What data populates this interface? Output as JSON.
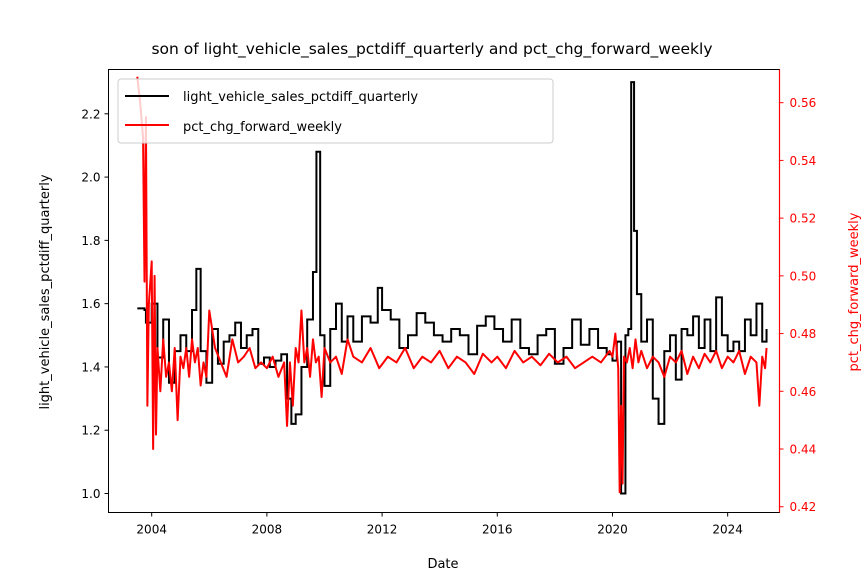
{
  "chart_data": {
    "type": "line",
    "title": "son of light_vehicle_sales_pctdiff_quarterly and pct_chg_forward_weekly",
    "xlabel": "Date",
    "ylabel": "light_vehicle_sales_pctdiff_quarterly",
    "y2label": "pct_chg_forward_weekly",
    "xlim": [
      2002.5,
      2025.8
    ],
    "ylim": [
      0.94,
      2.34
    ],
    "y2lim": [
      0.418,
      0.5715
    ],
    "xticks": [
      "2004",
      "2008",
      "2012",
      "2016",
      "2020",
      "2024"
    ],
    "yticks": [
      "1.0",
      "1.2",
      "1.4",
      "1.6",
      "1.8",
      "2.0",
      "2.2"
    ],
    "y2ticks": [
      "0.42",
      "0.44",
      "0.46",
      "0.48",
      "0.50",
      "0.52",
      "0.54",
      "0.56"
    ],
    "legend": {
      "placement": "top-left",
      "entries": [
        "light_vehicle_sales_pctdiff_quarterly",
        "pct_chg_forward_weekly"
      ]
    },
    "colors": {
      "series1": "#000000",
      "series2": "#ff0000"
    },
    "series": [
      {
        "name": "light_vehicle_sales_pctdiff_quarterly",
        "axis": "left",
        "x": [
          2003.5,
          2003.75,
          2003.8,
          2004.0,
          2004.2,
          2004.4,
          2004.6,
          2004.8,
          2005.0,
          2005.2,
          2005.4,
          2005.55,
          2005.7,
          2005.9,
          2006.1,
          2006.3,
          2006.5,
          2006.7,
          2006.9,
          2007.1,
          2007.3,
          2007.5,
          2007.7,
          2007.9,
          2008.1,
          2008.3,
          2008.5,
          2008.7,
          2008.85,
          2009.0,
          2009.2,
          2009.4,
          2009.6,
          2009.72,
          2009.85,
          2010.0,
          2010.2,
          2010.4,
          2010.6,
          2010.8,
          2011.0,
          2011.3,
          2011.6,
          2011.85,
          2012.0,
          2012.3,
          2012.6,
          2012.9,
          2013.2,
          2013.5,
          2013.8,
          2014.1,
          2014.4,
          2014.7,
          2015.0,
          2015.3,
          2015.6,
          2015.9,
          2016.2,
          2016.5,
          2016.8,
          2017.1,
          2017.4,
          2017.7,
          2018.0,
          2018.3,
          2018.6,
          2018.9,
          2019.2,
          2019.5,
          2019.8,
          2020.0,
          2020.15,
          2020.3,
          2020.45,
          2020.55,
          2020.65,
          2020.75,
          2020.85,
          2021.0,
          2021.2,
          2021.4,
          2021.6,
          2021.8,
          2022.0,
          2022.2,
          2022.4,
          2022.6,
          2022.8,
          2023.0,
          2023.2,
          2023.4,
          2023.6,
          2023.8,
          2024.0,
          2024.2,
          2024.4,
          2024.6,
          2024.8,
          2025.0,
          2025.2,
          2025.35
        ],
        "values": [
          1.585,
          1.58,
          1.54,
          1.6,
          1.43,
          1.55,
          1.35,
          1.45,
          1.5,
          1.45,
          1.58,
          1.71,
          1.45,
          1.35,
          1.52,
          1.41,
          1.48,
          1.5,
          1.54,
          1.46,
          1.5,
          1.52,
          1.41,
          1.43,
          1.4,
          1.42,
          1.44,
          1.3,
          1.22,
          1.25,
          1.4,
          1.55,
          1.7,
          2.08,
          1.5,
          1.34,
          1.52,
          1.6,
          1.48,
          1.56,
          1.48,
          1.56,
          1.54,
          1.65,
          1.58,
          1.55,
          1.46,
          1.5,
          1.57,
          1.54,
          1.5,
          1.48,
          1.52,
          1.5,
          1.44,
          1.53,
          1.56,
          1.52,
          1.48,
          1.55,
          1.46,
          1.44,
          1.5,
          1.52,
          1.41,
          1.46,
          1.55,
          1.47,
          1.52,
          1.46,
          1.44,
          1.42,
          1.48,
          1.0,
          1.5,
          1.52,
          2.3,
          1.83,
          1.63,
          1.48,
          1.55,
          1.3,
          1.22,
          1.45,
          1.5,
          1.36,
          1.52,
          1.5,
          1.56,
          1.46,
          1.55,
          1.45,
          1.62,
          1.5,
          1.45,
          1.48,
          1.45,
          1.55,
          1.5,
          1.6,
          1.48,
          1.52
        ]
      },
      {
        "name": "pct_chg_forward_weekly",
        "axis": "right",
        "x": [
          2003.5,
          2003.6,
          2003.7,
          2003.75,
          2003.8,
          2003.85,
          2003.9,
          2004.0,
          2004.05,
          2004.1,
          2004.15,
          2004.2,
          2004.3,
          2004.4,
          2004.5,
          2004.6,
          2004.7,
          2004.8,
          2004.9,
          2005.0,
          2005.1,
          2005.2,
          2005.3,
          2005.4,
          2005.5,
          2005.6,
          2005.7,
          2005.8,
          2005.9,
          2006.0,
          2006.2,
          2006.4,
          2006.6,
          2006.8,
          2007.0,
          2007.2,
          2007.4,
          2007.6,
          2007.8,
          2008.0,
          2008.2,
          2008.4,
          2008.6,
          2008.7,
          2008.8,
          2008.9,
          2009.0,
          2009.1,
          2009.2,
          2009.3,
          2009.4,
          2009.5,
          2009.6,
          2009.7,
          2009.8,
          2009.9,
          2010.0,
          2010.2,
          2010.4,
          2010.6,
          2010.8,
          2011.0,
          2011.3,
          2011.6,
          2011.9,
          2012.2,
          2012.5,
          2012.8,
          2013.1,
          2013.4,
          2013.7,
          2014.0,
          2014.3,
          2014.6,
          2014.9,
          2015.2,
          2015.5,
          2015.8,
          2016.0,
          2016.3,
          2016.6,
          2016.9,
          2017.2,
          2017.5,
          2017.8,
          2018.1,
          2018.4,
          2018.7,
          2019.0,
          2019.3,
          2019.6,
          2019.9,
          2020.0,
          2020.1,
          2020.2,
          2020.25,
          2020.3,
          2020.35,
          2020.4,
          2020.5,
          2020.6,
          2020.7,
          2020.8,
          2020.9,
          2021.0,
          2021.2,
          2021.4,
          2021.6,
          2021.8,
          2022.0,
          2022.2,
          2022.4,
          2022.6,
          2022.8,
          2023.0,
          2023.2,
          2023.4,
          2023.6,
          2023.8,
          2024.0,
          2024.2,
          2024.4,
          2024.6,
          2024.8,
          2025.0,
          2025.1,
          2025.2,
          2025.3,
          2025.35
        ],
        "values": [
          0.569,
          0.56,
          0.548,
          0.498,
          0.555,
          0.455,
          0.49,
          0.505,
          0.44,
          0.5,
          0.445,
          0.475,
          0.46,
          0.478,
          0.465,
          0.47,
          0.46,
          0.475,
          0.45,
          0.472,
          0.468,
          0.475,
          0.465,
          0.478,
          0.47,
          0.475,
          0.462,
          0.47,
          0.465,
          0.488,
          0.475,
          0.47,
          0.465,
          0.478,
          0.47,
          0.472,
          0.475,
          0.468,
          0.47,
          0.468,
          0.472,
          0.465,
          0.47,
          0.448,
          0.47,
          0.455,
          0.475,
          0.47,
          0.488,
          0.47,
          0.475,
          0.465,
          0.478,
          0.47,
          0.472,
          0.458,
          0.475,
          0.47,
          0.472,
          0.466,
          0.478,
          0.472,
          0.47,
          0.475,
          0.468,
          0.472,
          0.47,
          0.475,
          0.468,
          0.472,
          0.47,
          0.474,
          0.468,
          0.472,
          0.47,
          0.466,
          0.473,
          0.47,
          0.472,
          0.468,
          0.474,
          0.47,
          0.472,
          0.469,
          0.473,
          0.47,
          0.472,
          0.468,
          0.47,
          0.472,
          0.47,
          0.474,
          0.472,
          0.48,
          0.468,
          0.425,
          0.455,
          0.428,
          0.472,
          0.47,
          0.475,
          0.468,
          0.478,
          0.47,
          0.474,
          0.468,
          0.472,
          0.47,
          0.465,
          0.472,
          0.47,
          0.474,
          0.466,
          0.472,
          0.468,
          0.473,
          0.47,
          0.474,
          0.468,
          0.472,
          0.47,
          0.474,
          0.466,
          0.472,
          0.47,
          0.455,
          0.472,
          0.468,
          0.475
        ]
      }
    ]
  }
}
